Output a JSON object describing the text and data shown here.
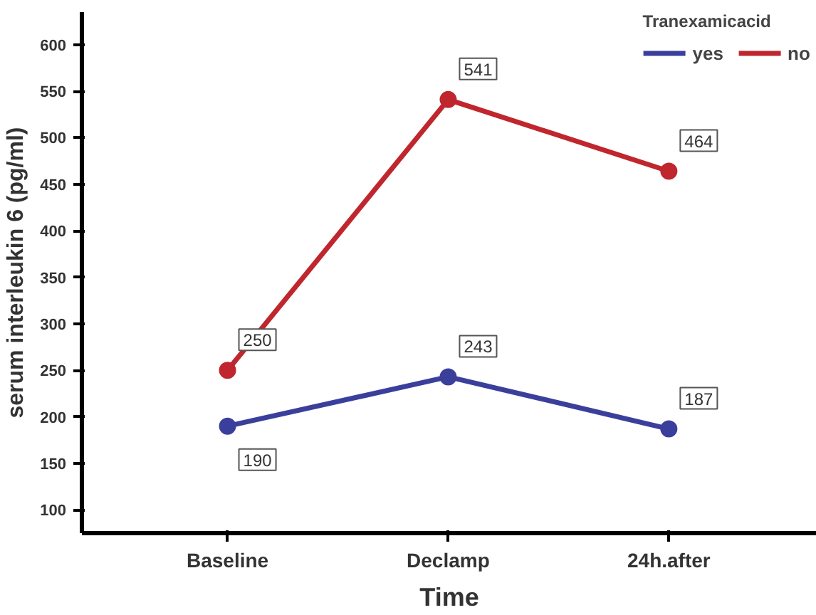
{
  "chart_data": {
    "type": "line",
    "xlabel": "Time",
    "ylabel": "serum interleukin 6 (pg/ml)",
    "legend_title": "Tranexamicacid",
    "categories": [
      "Baseline",
      "Declamp",
      "24h.after"
    ],
    "series": [
      {
        "name": "yes",
        "color": "#3b3f9c",
        "values": [
          190,
          243,
          187
        ]
      },
      {
        "name": "no",
        "color": "#c0262d",
        "values": [
          250,
          541,
          464
        ]
      }
    ],
    "ylim": [
      75,
      635
    ],
    "yticks": [
      100,
      150,
      200,
      250,
      300,
      350,
      400,
      450,
      500,
      550,
      600
    ],
    "data_labels": true,
    "legend": "top right",
    "grid": false,
    "marker": "circle",
    "line_style": "solid"
  }
}
